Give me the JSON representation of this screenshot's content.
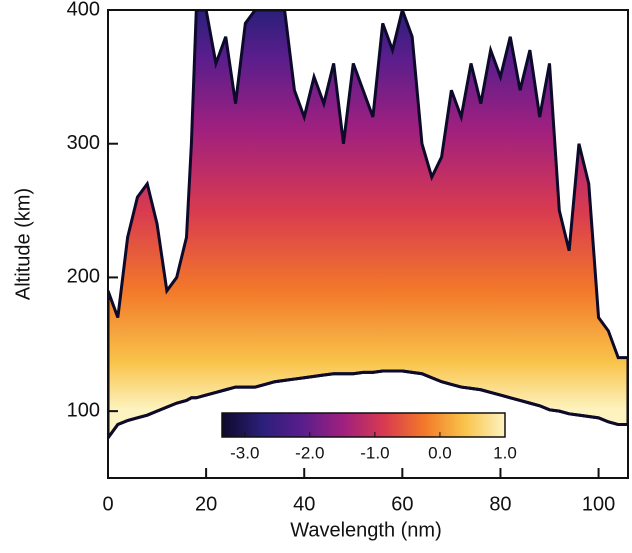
{
  "chart_data": {
    "type": "contour",
    "xlabel": "Wavelength (nm)",
    "ylabel": "Altitude (km)",
    "x": [
      0,
      2,
      4,
      6,
      8,
      10,
      12,
      14,
      16,
      17,
      18,
      20,
      22,
      24,
      26,
      28,
      30,
      32,
      34,
      36,
      38,
      40,
      42,
      44,
      46,
      48,
      50,
      52,
      54,
      56,
      58,
      60,
      62,
      64,
      66,
      68,
      70,
      72,
      74,
      76,
      78,
      80,
      82,
      84,
      86,
      88,
      90,
      92,
      94,
      96,
      98,
      100,
      102,
      104,
      106
    ],
    "top_altitude": [
      190,
      170,
      230,
      260,
      270,
      240,
      190,
      200,
      230,
      300,
      400,
      400,
      360,
      380,
      330,
      390,
      400,
      400,
      400,
      400,
      340,
      320,
      350,
      330,
      360,
      300,
      360,
      340,
      320,
      390,
      370,
      400,
      380,
      300,
      275,
      290,
      340,
      320,
      360,
      330,
      370,
      350,
      380,
      340,
      370,
      320,
      360,
      250,
      220,
      300,
      270,
      170,
      160,
      140,
      140
    ],
    "bottom_altitude": [
      80,
      90,
      93,
      95,
      97,
      100,
      103,
      106,
      108,
      110,
      110,
      112,
      114,
      116,
      118,
      118,
      118,
      120,
      122,
      123,
      124,
      125,
      126,
      127,
      128,
      128,
      128,
      129,
      129,
      130,
      130,
      130,
      129,
      128,
      125,
      122,
      120,
      118,
      117,
      116,
      114,
      112,
      110,
      108,
      106,
      104,
      101,
      100,
      98,
      97,
      96,
      95,
      92,
      90,
      90
    ],
    "xlim": [
      0,
      106
    ],
    "xticks": [
      0,
      20,
      40,
      60,
      80,
      100
    ],
    "ylim": [
      50,
      400
    ],
    "yticks": [
      100,
      200,
      300,
      400
    ],
    "colormap": [
      "#0d0a2a",
      "#2b1f7a",
      "#5a1e8c",
      "#a0207f",
      "#d83a50",
      "#f2782a",
      "#f9c34a",
      "#fdf3c0"
    ],
    "clim": [
      -3.35,
      1.0
    ],
    "cticks": [
      {
        "value": -3,
        "label": "-3.0"
      },
      {
        "value": -2,
        "label": "-2.0"
      },
      {
        "value": -1,
        "label": "-1.0"
      },
      {
        "value": 0,
        "label": "0.0"
      },
      {
        "value": 1,
        "label": "1.0"
      }
    ]
  }
}
